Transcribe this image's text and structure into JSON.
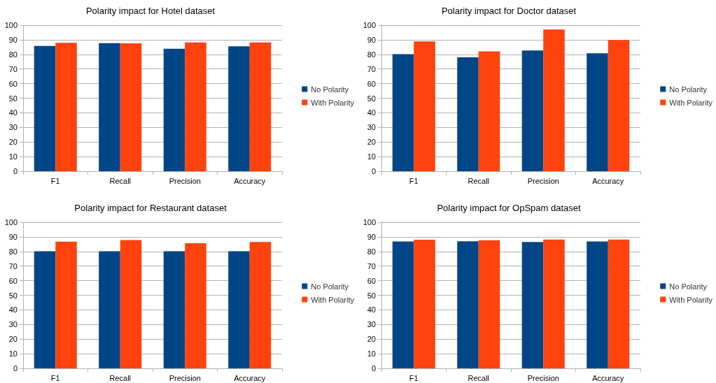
{
  "chart_data": [
    {
      "type": "bar",
      "title": "Polarity impact for Hotel dataset",
      "categories": [
        "F1",
        "Recall",
        "Precision",
        "Accuracy"
      ],
      "series": [
        {
          "name": "No Polarity",
          "color": "#004586",
          "values": [
            85.8,
            87.7,
            83.8,
            85.5
          ]
        },
        {
          "name": "With Polarity",
          "color": "#ff420e",
          "values": [
            87.9,
            87.6,
            88.1,
            88.2
          ]
        }
      ],
      "ylim": [
        0,
        100
      ],
      "yticks": [
        0,
        10,
        20,
        30,
        40,
        50,
        60,
        70,
        80,
        90,
        100
      ],
      "grid": "y",
      "legend": "right"
    },
    {
      "type": "bar",
      "title": "Polarity impact for Doctor dataset",
      "categories": [
        "F1",
        "Recall",
        "Precision",
        "Accuracy"
      ],
      "series": [
        {
          "name": "No Polarity",
          "color": "#004586",
          "values": [
            80.2,
            78,
            82.7,
            80.7
          ]
        },
        {
          "name": "With Polarity",
          "color": "#ff420e",
          "values": [
            88.9,
            82,
            97,
            89.8
          ]
        }
      ],
      "ylim": [
        0,
        100
      ],
      "yticks": [
        0,
        10,
        20,
        30,
        40,
        50,
        60,
        70,
        80,
        90,
        100
      ],
      "grid": "y",
      "legend": "right"
    },
    {
      "type": "bar",
      "title": "Polarity impact for Restaurant dataset",
      "categories": [
        "F1",
        "Recall",
        "Precision",
        "Accuracy"
      ],
      "series": [
        {
          "name": "No Polarity",
          "color": "#004586",
          "values": [
            80.2,
            80.2,
            80.2,
            80.2
          ]
        },
        {
          "name": "With Polarity",
          "color": "#ff420e",
          "values": [
            86.7,
            87.8,
            85.6,
            86.5
          ]
        }
      ],
      "ylim": [
        0,
        100
      ],
      "yticks": [
        0,
        10,
        20,
        30,
        40,
        50,
        60,
        70,
        80,
        90,
        100
      ],
      "grid": "y",
      "legend": "right"
    },
    {
      "type": "bar",
      "title": "Polarity impact for OpSpam dataset",
      "categories": [
        "F1",
        "Recall",
        "Precision",
        "Accuracy"
      ],
      "series": [
        {
          "name": "No Polarity",
          "color": "#004586",
          "values": [
            86.8,
            87,
            86.5,
            86.8
          ]
        },
        {
          "name": "With Polarity",
          "color": "#ff420e",
          "values": [
            88,
            87.7,
            88.2,
            88.2
          ]
        }
      ],
      "ylim": [
        0,
        100
      ],
      "yticks": [
        0,
        10,
        20,
        30,
        40,
        50,
        60,
        70,
        80,
        90,
        100
      ],
      "grid": "y",
      "legend": "right"
    }
  ]
}
